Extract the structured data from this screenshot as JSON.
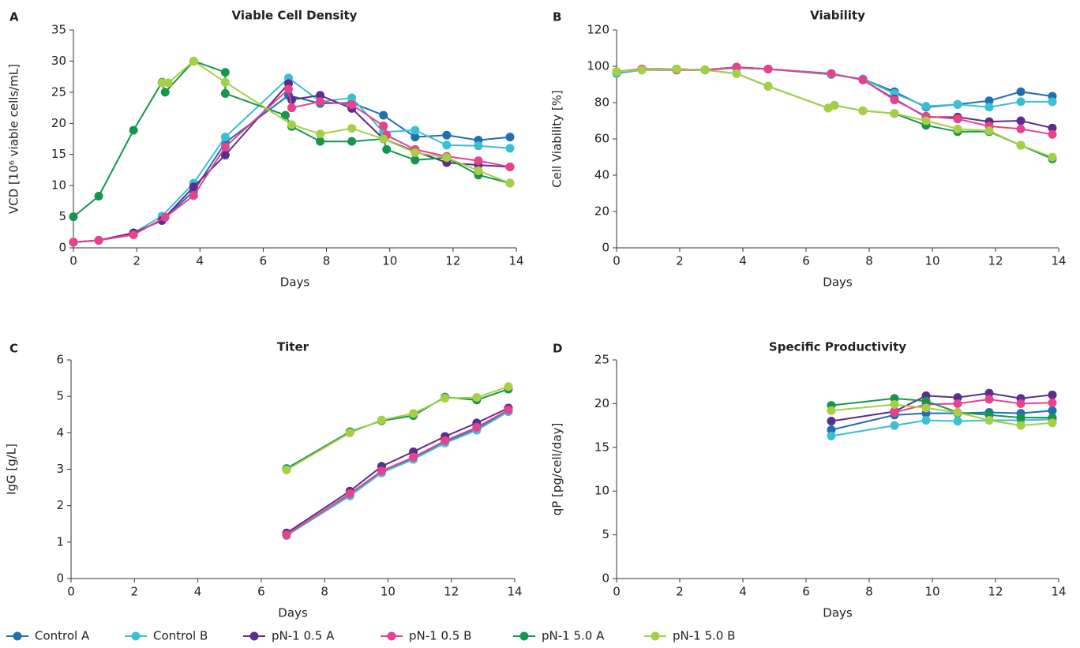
{
  "chart_data": [
    {
      "type": "line",
      "panel_label": "A",
      "title": "Viable Cell Density",
      "x_label": "Days",
      "y_label": "VCD [10⁶ viable cells/mL]",
      "xlim": [
        0,
        14
      ],
      "xticks": [
        0,
        2,
        4,
        6,
        8,
        10,
        12,
        14
      ],
      "ylim": [
        0,
        35
      ],
      "yticks": [
        0,
        5,
        10,
        15,
        20,
        25,
        30,
        35
      ],
      "series": [
        {
          "name": "Control A",
          "color": "#1f6fb2",
          "x": [
            0,
            0.8,
            1.9,
            2.8,
            3.8,
            4.8,
            6.8,
            7.8,
            8.8,
            9.8,
            10.8,
            11.8,
            12.8,
            13.8
          ],
          "values": [
            0.9,
            1.2,
            2.4,
            4.4,
            9.1,
            16.9,
            24.5,
            23.2,
            23.3,
            21.3,
            17.8,
            18.1,
            17.3,
            17.8
          ]
        },
        {
          "name": "Control B",
          "color": "#3bbfd2",
          "x": [
            0,
            0.8,
            1.9,
            2.8,
            3.8,
            4.8,
            6.8,
            7.8,
            8.8,
            9.8,
            10.8,
            11.8,
            12.8,
            13.8
          ],
          "values": [
            0.9,
            1.2,
            2.4,
            5.1,
            10.4,
            17.8,
            27.3,
            23.5,
            24.1,
            18.6,
            18.9,
            16.5,
            16.4,
            16.0
          ]
        },
        {
          "name": "pN-1 0.5 A",
          "color": "#5b2d8e",
          "x": [
            0,
            0.8,
            1.9,
            2.8,
            3.8,
            4.8,
            6.8,
            6.9,
            7.8,
            8.8,
            9.8,
            10.8,
            11.8,
            12.8,
            13.8
          ],
          "values": [
            0.9,
            1.2,
            2.4,
            4.4,
            9.8,
            14.9,
            26.4,
            23.8,
            24.5,
            22.4,
            17.5,
            15.5,
            13.7,
            13.3,
            13.0
          ]
        },
        {
          "name": "pN-1 0.5 B",
          "color": "#e8418d",
          "x": [
            0,
            0.8,
            1.9,
            2.9,
            3.8,
            4.8,
            6.8,
            6.9,
            7.8,
            8.8,
            9.8,
            9.9,
            10.8,
            11.8,
            12.8,
            13.8
          ],
          "values": [
            0.9,
            1.2,
            2.1,
            4.9,
            8.4,
            16.2,
            25.5,
            22.5,
            23.5,
            23.0,
            19.6,
            18.1,
            15.8,
            14.7,
            14.0,
            13.0
          ]
        },
        {
          "name": "pN-1 5.0 A",
          "color": "#17954f",
          "x": [
            0,
            0.8,
            1.9,
            2.8,
            2.9,
            3.8,
            4.8,
            4.8,
            6.7,
            6.9,
            7.8,
            8.8,
            9.8,
            9.9,
            10.8,
            11.8,
            12.8,
            13.8
          ],
          "values": [
            5.0,
            8.3,
            18.9,
            26.6,
            25.0,
            30.0,
            28.2,
            24.8,
            21.3,
            19.5,
            17.1,
            17.1,
            17.5,
            15.8,
            14.1,
            14.5,
            11.7,
            10.4
          ]
        },
        {
          "name": "pN-1 5.0 B",
          "color": "#a6cf45",
          "x": [
            2.8,
            3.0,
            3.8,
            4.8,
            6.9,
            7.8,
            8.8,
            9.8,
            10.8,
            11.8,
            12.8,
            13.8
          ],
          "values": [
            26.5,
            26.5,
            30.0,
            26.6,
            19.8,
            18.3,
            19.2,
            17.5,
            15.3,
            14.5,
            12.4,
            10.4
          ]
        }
      ]
    },
    {
      "type": "line",
      "panel_label": "B",
      "title": "Viability",
      "x_label": "Days",
      "y_label": "Cell Viability [%]",
      "xlim": [
        0,
        14
      ],
      "xticks": [
        0,
        2,
        4,
        6,
        8,
        10,
        12,
        14
      ],
      "ylim": [
        0,
        120
      ],
      "yticks": [
        0,
        20,
        40,
        60,
        80,
        100,
        120
      ],
      "series": [
        {
          "name": "Control A",
          "color": "#1f6fb2",
          "x": [
            0,
            0.8,
            1.9,
            2.8,
            3.8,
            4.8,
            6.8,
            7.8,
            8.8,
            9.8,
            10.8,
            11.8,
            12.8,
            13.8
          ],
          "values": [
            97,
            98,
            98,
            98,
            99.5,
            98.5,
            95.5,
            93,
            86,
            77.5,
            79,
            81,
            86,
            83.5
          ]
        },
        {
          "name": "Control B",
          "color": "#3bbfd2",
          "x": [
            0,
            0.8,
            1.9,
            2.8,
            3.8,
            4.8,
            6.8,
            7.8,
            8.8,
            9.8,
            10.8,
            11.8,
            12.8,
            13.8
          ],
          "values": [
            96,
            98,
            98.5,
            98,
            99,
            98.5,
            95.5,
            93,
            85,
            78,
            79,
            77.5,
            80.5,
            80.5
          ]
        },
        {
          "name": "pN-1 0.5 A",
          "color": "#5b2d8e",
          "x": [
            0,
            0.8,
            1.9,
            2.8,
            3.8,
            4.8,
            6.8,
            7.8,
            8.8,
            9.8,
            10.8,
            11.8,
            12.8,
            13.8
          ],
          "values": [
            97,
            98.5,
            98.5,
            98,
            99.5,
            98.5,
            96,
            92.5,
            82,
            72,
            72,
            69.5,
            70,
            66
          ]
        },
        {
          "name": "pN-1 0.5 B",
          "color": "#e8418d",
          "x": [
            0,
            0.8,
            1.9,
            2.8,
            3.8,
            4.8,
            6.8,
            7.8,
            8.8,
            9.8,
            10.8,
            11.8,
            12.8,
            13.8
          ],
          "values": [
            97,
            98.5,
            98,
            98,
            99.5,
            98.5,
            96,
            92.5,
            81.5,
            72.5,
            71,
            67,
            65.5,
            62.5
          ]
        },
        {
          "name": "pN-1 5.0 A",
          "color": "#17954f",
          "x": [
            0,
            0.8,
            1.9,
            2.8,
            3.8,
            4.8,
            6.7,
            6.9,
            7.8,
            8.8,
            9.8,
            10.8,
            11.8,
            12.8,
            13.8
          ],
          "values": [
            97,
            98,
            98.5,
            98,
            96,
            89,
            77,
            78.5,
            75.5,
            74,
            67.5,
            64,
            64,
            56.5,
            49
          ]
        },
        {
          "name": "pN-1 5.0 B",
          "color": "#a6cf45",
          "x": [
            0,
            0.8,
            1.9,
            2.8,
            3.8,
            4.8,
            6.7,
            6.9,
            7.8,
            8.8,
            9.8,
            10.8,
            11.8,
            12.8,
            13.8
          ],
          "values": [
            97,
            98,
            98.5,
            98,
            96,
            89,
            77,
            78.5,
            75.5,
            74,
            70,
            65.5,
            64.5,
            56.5,
            50
          ]
        }
      ]
    },
    {
      "type": "line",
      "panel_label": "C",
      "title": "Titer",
      "x_label": "Days",
      "y_label": "IgG [g/L]",
      "xlim": [
        0,
        14
      ],
      "xticks": [
        0,
        2,
        4,
        6,
        8,
        10,
        12,
        14
      ],
      "ylim": [
        0,
        6
      ],
      "yticks": [
        0,
        1,
        2,
        3,
        4,
        5,
        6
      ],
      "series": [
        {
          "name": "Control A",
          "color": "#1f6fb2",
          "x": [
            6.8,
            8.8,
            9.8,
            10.8,
            11.8,
            12.8,
            13.8
          ],
          "values": [
            1.2,
            2.3,
            2.95,
            3.3,
            3.75,
            4.1,
            4.6
          ]
        },
        {
          "name": "Control B",
          "color": "#3bbfd2",
          "x": [
            6.8,
            8.8,
            9.8,
            10.8,
            11.8,
            12.8,
            13.8
          ],
          "values": [
            1.18,
            2.27,
            2.9,
            3.27,
            3.72,
            4.07,
            4.58
          ]
        },
        {
          "name": "pN-1 0.5 A",
          "color": "#5b2d8e",
          "x": [
            6.8,
            8.8,
            9.8,
            10.8,
            11.8,
            12.8,
            13.8
          ],
          "values": [
            1.25,
            2.4,
            3.08,
            3.48,
            3.9,
            4.27,
            4.68
          ]
        },
        {
          "name": "pN-1 0.5 B",
          "color": "#e8418d",
          "x": [
            6.8,
            8.8,
            9.8,
            10.8,
            11.8,
            12.8,
            13.8
          ],
          "values": [
            1.2,
            2.33,
            2.95,
            3.33,
            3.78,
            4.15,
            4.63
          ]
        },
        {
          "name": "pN-1 5.0 A",
          "color": "#17954f",
          "x": [
            6.8,
            8.8,
            9.8,
            10.8,
            11.8,
            12.8,
            13.8
          ],
          "values": [
            3.02,
            4.03,
            4.33,
            4.47,
            4.98,
            4.9,
            5.2
          ]
        },
        {
          "name": "pN-1 5.0 B",
          "color": "#a6cf45",
          "x": [
            6.8,
            8.8,
            9.8,
            10.8,
            11.8,
            12.8,
            13.8
          ],
          "values": [
            2.98,
            4.0,
            4.35,
            4.53,
            4.95,
            4.97,
            5.27
          ]
        }
      ]
    },
    {
      "type": "line",
      "panel_label": "D",
      "title": "Specific Productivity",
      "x_label": "Days",
      "y_label": "qP [pg/cell/day]",
      "xlim": [
        0,
        14
      ],
      "xticks": [
        0,
        2,
        4,
        6,
        8,
        10,
        12,
        14
      ],
      "ylim": [
        0,
        25
      ],
      "yticks": [
        0,
        5,
        10,
        15,
        20,
        25
      ],
      "series": [
        {
          "name": "Control A",
          "color": "#1f6fb2",
          "x": [
            6.8,
            8.8,
            9.8,
            10.8,
            11.8,
            12.8,
            13.8
          ],
          "values": [
            17.0,
            18.7,
            18.9,
            18.9,
            19.0,
            18.9,
            19.2
          ]
        },
        {
          "name": "Control B",
          "color": "#3bbfd2",
          "x": [
            6.8,
            8.8,
            9.8,
            10.8,
            11.8,
            12.8,
            13.8
          ],
          "values": [
            16.3,
            17.5,
            18.1,
            18.0,
            18.1,
            18.1,
            18.2
          ]
        },
        {
          "name": "pN-1 0.5 A",
          "color": "#5b2d8e",
          "x": [
            6.8,
            8.8,
            9.8,
            10.8,
            11.8,
            12.8,
            13.8
          ],
          "values": [
            18.0,
            19.1,
            20.9,
            20.7,
            21.2,
            20.6,
            21.0
          ]
        },
        {
          "name": "pN-1 0.5 B",
          "color": "#e8418d",
          "x": [
            8.8,
            9.8,
            10.8,
            11.8,
            12.8,
            13.8
          ],
          "values": [
            19.0,
            19.9,
            20.0,
            20.5,
            20.0,
            20.1
          ]
        },
        {
          "name": "pN-1 5.0 A",
          "color": "#17954f",
          "x": [
            6.8,
            8.8,
            9.8,
            10.8,
            11.8,
            12.8,
            13.8
          ],
          "values": [
            19.8,
            20.6,
            20.3,
            19.0,
            18.7,
            18.4,
            18.4
          ]
        },
        {
          "name": "pN-1 5.0 B",
          "color": "#a6cf45",
          "x": [
            6.8,
            8.8,
            9.8,
            10.8,
            11.8,
            12.8,
            13.8
          ],
          "values": [
            19.2,
            19.9,
            19.5,
            19.0,
            18.1,
            17.5,
            17.8
          ]
        }
      ]
    }
  ]
}
